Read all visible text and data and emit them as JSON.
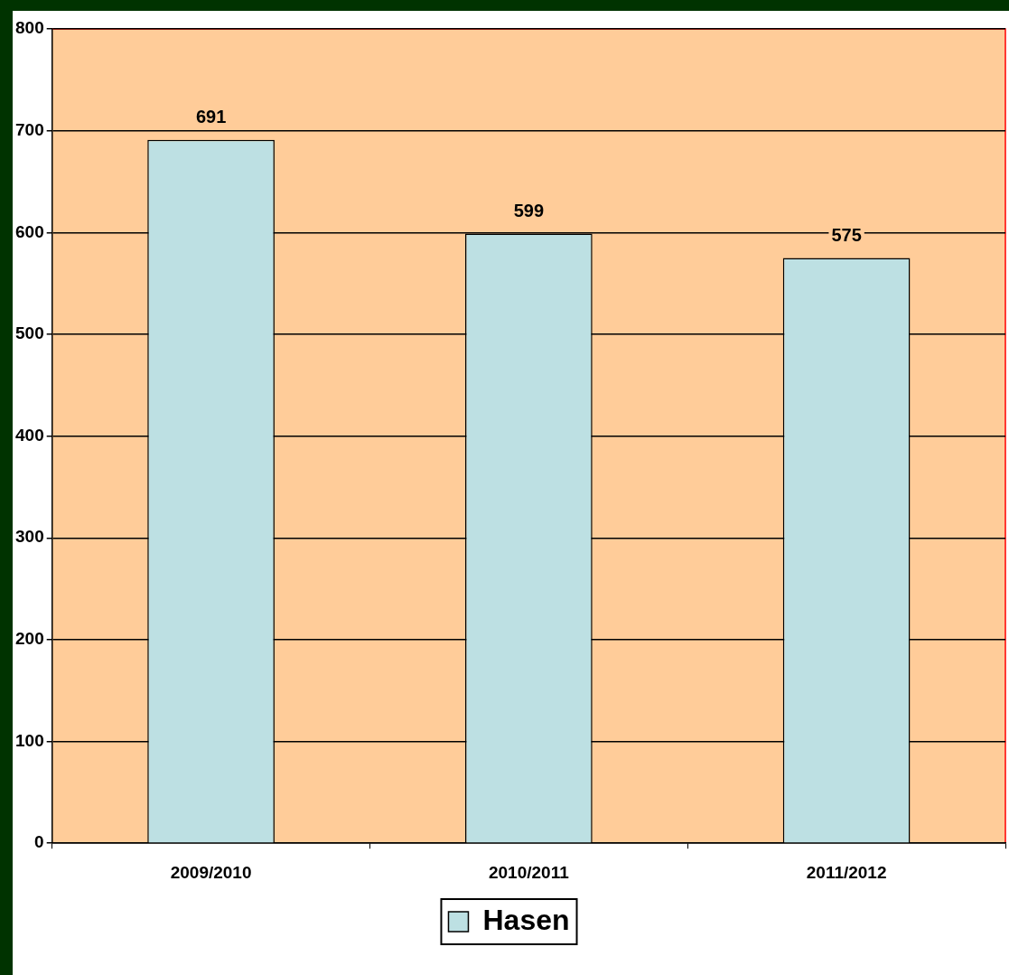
{
  "chart_data": {
    "type": "bar",
    "categories": [
      "2009/2010",
      "2010/2011",
      "2011/2012"
    ],
    "series": [
      {
        "name": "Hasen",
        "color": "#bde0e3",
        "values": [
          691,
          599,
          575
        ]
      }
    ],
    "ylim": [
      0,
      800
    ],
    "yticks": [
      0,
      100,
      200,
      300,
      400,
      500,
      600,
      700,
      800
    ],
    "grid": "y",
    "legend": "bottom",
    "data_labels": true
  }
}
